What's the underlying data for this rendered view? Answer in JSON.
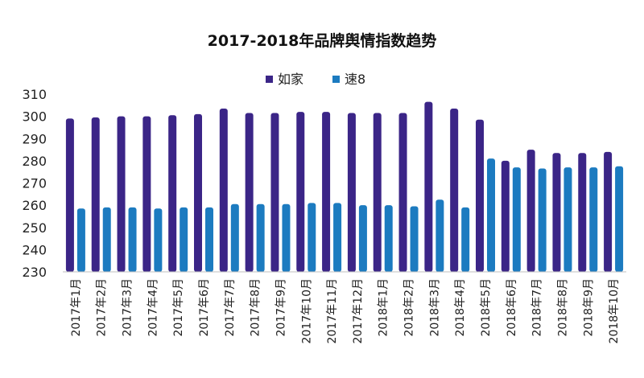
{
  "chart_data": {
    "type": "bar",
    "title": "2017-2018年品牌舆情指数趋势",
    "xlabel": "",
    "ylabel": "",
    "ylim": [
      230,
      310
    ],
    "yticks": [
      230,
      240,
      250,
      260,
      270,
      280,
      290,
      300,
      310
    ],
    "legend_position": "top-center",
    "grid": false,
    "categories": [
      "2017年1月",
      "2017年2月",
      "2017年3月",
      "2017年4月",
      "2017年5月",
      "2017年6月",
      "2017年7月",
      "2017年8月",
      "2017年9月",
      "2017年10月",
      "2017年11月",
      "2017年12月",
      "2018年1月",
      "2018年2月",
      "2018年3月",
      "2018年4月",
      "2018年5月",
      "2018年6月",
      "2018年7月",
      "2018年8月",
      "2018年9月",
      "2018年10月"
    ],
    "series": [
      {
        "name": "如家",
        "color": "#3b2587",
        "values": [
          299,
          299.5,
          300,
          300,
          300.5,
          301,
          303.5,
          301.5,
          301.5,
          302,
          302,
          301.5,
          301.5,
          301.5,
          306.5,
          303.5,
          298.5,
          280,
          285,
          283.5,
          283.5,
          284
        ]
      },
      {
        "name": "速8",
        "color": "#1c7bc0",
        "values": [
          258.5,
          259,
          259,
          258.5,
          259,
          259,
          260.5,
          260.5,
          260.5,
          261,
          261,
          260,
          260,
          259.5,
          262.5,
          259,
          281,
          277,
          276.5,
          277,
          277,
          277.5
        ]
      }
    ]
  }
}
